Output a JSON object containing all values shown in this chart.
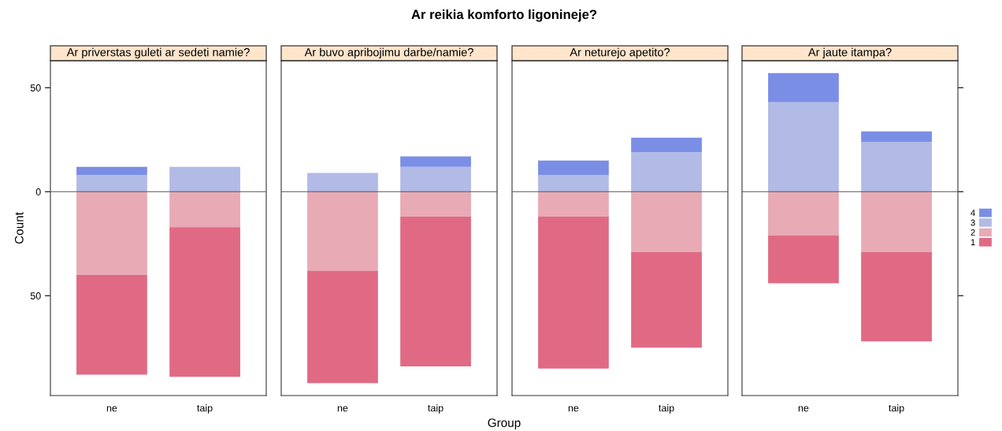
{
  "chart_data": [
    {
      "type": "bar",
      "stacked": true,
      "title": "Ar priverstas guleti ar sedeti namie?",
      "annotations": [
        "Ar reikia komforto ligonineje?"
      ],
      "ylabel": "Count",
      "categories": [
        "ne",
        "taip"
      ],
      "legend": "right",
      "series": [
        {
          "name": "2",
          "color": "#e8aab5",
          "values": [
            -40,
            -17
          ]
        },
        {
          "name": "1",
          "color": "#e06a84",
          "values": [
            -48,
            -72
          ]
        },
        {
          "name": "3",
          "color": "#b2bae6",
          "values": [
            8,
            12
          ]
        },
        {
          "name": "4",
          "color": "#7b8ee6",
          "values": [
            4,
            0
          ]
        }
      ],
      "ylim": [
        -98,
        63
      ],
      "yticks": [
        {
          "value": -50,
          "label": "50"
        },
        0,
        50
      ],
      "ref_lines": [
        {
          "axis": "y",
          "value": 0,
          "color": "#555555"
        }
      ]
    },
    {
      "type": "bar",
      "stacked": true,
      "title": "Ar buvo apribojimu darbe/namie?",
      "xlabel": "Group",
      "categories": [
        "ne",
        "taip"
      ],
      "series": [
        {
          "color": "#e8aab5",
          "values": [
            -38,
            -12
          ]
        },
        {
          "color": "#e06a84",
          "values": [
            -54,
            -72
          ]
        },
        {
          "color": "#b2bae6",
          "values": [
            9,
            12
          ]
        },
        {
          "color": "#7b8ee6",
          "values": [
            0,
            5
          ]
        }
      ],
      "ylim": [
        -98,
        63
      ],
      "tick_labels": "x",
      "ref_lines": [
        {
          "axis": "y",
          "value": 0,
          "color": "#555555"
        }
      ]
    },
    {
      "type": "bar",
      "stacked": true,
      "title": "Ar neturejo apetito?",
      "categories": [
        "ne",
        "taip"
      ],
      "series": [
        {
          "color": "#e8aab5",
          "values": [
            -12,
            -29
          ]
        },
        {
          "color": "#e06a84",
          "values": [
            -73,
            -46
          ]
        },
        {
          "color": "#b2bae6",
          "values": [
            8,
            19
          ]
        },
        {
          "color": "#7b8ee6",
          "values": [
            7,
            7
          ]
        }
      ],
      "ylim": [
        -98,
        63
      ],
      "tick_labels": "x",
      "ref_lines": [
        {
          "axis": "y",
          "value": 0,
          "color": "#555555"
        }
      ]
    },
    {
      "type": "bar",
      "stacked": true,
      "title": "Ar jaute itampa?",
      "categories": [
        "ne",
        "taip"
      ],
      "series": [
        {
          "color": "#e8aab5",
          "values": [
            -21,
            -29
          ]
        },
        {
          "color": "#e06a84",
          "values": [
            -23,
            -43
          ]
        },
        {
          "color": "#b2bae6",
          "values": [
            43,
            24
          ]
        },
        {
          "color": "#7b8ee6",
          "values": [
            14,
            5
          ]
        }
      ],
      "ylim": [
        -98,
        63
      ],
      "yticks": [
        {
          "value": -50,
          "label": null
        },
        {
          "value": 0,
          "label": null
        },
        {
          "value": 50,
          "label": null
        }
      ],
      "tick_labels": "x",
      "ref_lines": [
        {
          "axis": "y",
          "value": 0,
          "color": "#555555"
        }
      ]
    }
  ]
}
